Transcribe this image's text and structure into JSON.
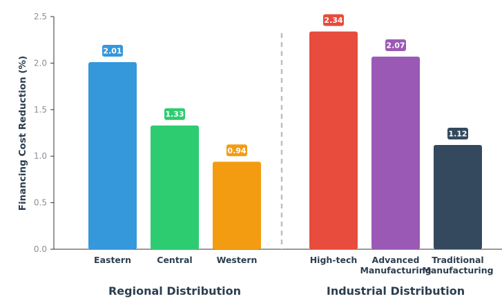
{
  "chart_data": {
    "type": "bar",
    "ylabel": "Financing Cost Reduction (%)",
    "ylim": [
      0,
      2.5
    ],
    "yticks": [
      "0.0",
      "0.5",
      "1.0",
      "1.5",
      "2.0",
      "2.5"
    ],
    "grid": false,
    "groups": [
      {
        "label": "Regional Distribution",
        "categories": [
          {
            "label": "Eastern",
            "value": 2.01,
            "value_label": "2.01",
            "color": "#3498db"
          },
          {
            "label": "Central",
            "value": 1.33,
            "value_label": "1.33",
            "color": "#2ecc71"
          },
          {
            "label": "Western",
            "value": 0.94,
            "value_label": "0.94",
            "color": "#f39c12"
          }
        ]
      },
      {
        "label": "Industrial Distribution",
        "categories": [
          {
            "label": "High-tech",
            "value": 2.34,
            "value_label": "2.34",
            "color": "#e74c3c"
          },
          {
            "label": "Advanced\nManufacturing",
            "value": 2.07,
            "value_label": "2.07",
            "color": "#9b59b6"
          },
          {
            "label": "Traditional\nManufacturing",
            "value": 1.12,
            "value_label": "1.12",
            "color": "#34495e"
          }
        ]
      }
    ],
    "separator": "dashed vertical line between groups"
  }
}
